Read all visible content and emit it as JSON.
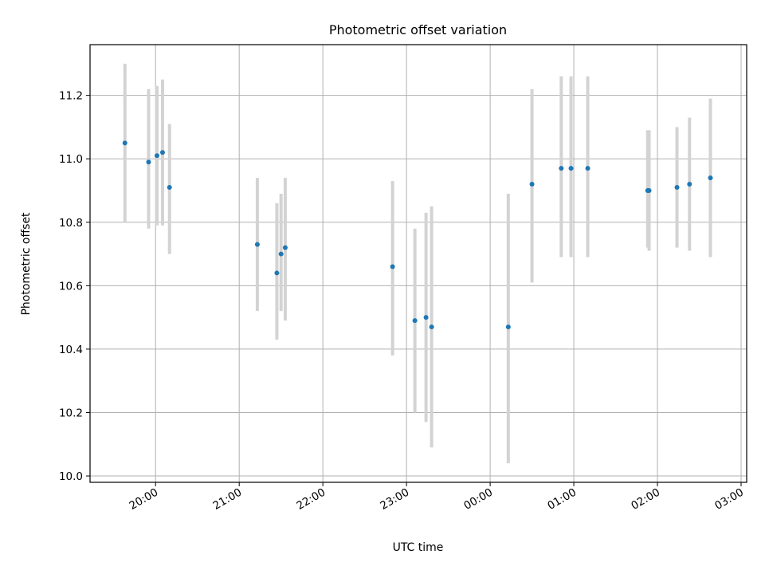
{
  "chart_data": {
    "type": "scatter",
    "title": "Photometric offset variation",
    "xlabel": "UTC time",
    "ylabel": "Photometric offset",
    "x_axis_type": "time",
    "x_start_date": "2000-01-01",
    "xlim": [
      "2000-01-01T19:13",
      "2000-01-02T03:04"
    ],
    "ylim": [
      9.98,
      11.36
    ],
    "x_ticks": [
      "20:00",
      "21:00",
      "22:00",
      "23:00",
      "00:00",
      "01:00",
      "02:00",
      "03:00"
    ],
    "y_ticks": [
      "10.0",
      "10.2",
      "10.4",
      "10.6",
      "10.8",
      "11.0",
      "11.2"
    ],
    "grid": true,
    "marker_color": "#1f77b4",
    "errorbar_color": "#d3d3d3",
    "points": [
      {
        "time": "19:38",
        "value": 11.05,
        "low": 10.8,
        "high": 11.3
      },
      {
        "time": "19:55",
        "value": 10.99,
        "low": 10.78,
        "high": 11.22
      },
      {
        "time": "20:01",
        "value": 11.01,
        "low": 10.79,
        "high": 11.23
      },
      {
        "time": "20:05",
        "value": 11.02,
        "low": 10.79,
        "high": 11.25
      },
      {
        "time": "20:10",
        "value": 10.91,
        "low": 10.7,
        "high": 11.11
      },
      {
        "time": "21:13",
        "value": 10.73,
        "low": 10.52,
        "high": 10.94
      },
      {
        "time": "21:27",
        "value": 10.64,
        "low": 10.43,
        "high": 10.86
      },
      {
        "time": "21:30",
        "value": 10.7,
        "low": 10.52,
        "high": 10.89
      },
      {
        "time": "21:33",
        "value": 10.72,
        "low": 10.49,
        "high": 10.94
      },
      {
        "time": "22:50",
        "value": 10.66,
        "low": 10.38,
        "high": 10.93
      },
      {
        "time": "23:06",
        "value": 10.49,
        "low": 10.2,
        "high": 10.78
      },
      {
        "time": "23:14",
        "value": 10.5,
        "low": 10.17,
        "high": 10.83
      },
      {
        "time": "23:18",
        "value": 10.47,
        "low": 10.09,
        "high": 10.85
      },
      {
        "time": "00:13",
        "value": 10.47,
        "low": 10.04,
        "high": 10.89
      },
      {
        "time": "00:30",
        "value": 10.92,
        "low": 10.61,
        "high": 11.22
      },
      {
        "time": "00:51",
        "value": 10.97,
        "low": 10.69,
        "high": 11.26
      },
      {
        "time": "00:58",
        "value": 10.97,
        "low": 10.69,
        "high": 11.26
      },
      {
        "time": "01:10",
        "value": 10.97,
        "low": 10.69,
        "high": 11.26
      },
      {
        "time": "01:53",
        "value": 10.9,
        "low": 10.72,
        "high": 11.09
      },
      {
        "time": "01:54",
        "value": 10.9,
        "low": 10.71,
        "high": 11.09
      },
      {
        "time": "02:14",
        "value": 10.91,
        "low": 10.72,
        "high": 11.1
      },
      {
        "time": "02:23",
        "value": 10.92,
        "low": 10.71,
        "high": 11.13
      },
      {
        "time": "02:38",
        "value": 10.94,
        "low": 10.69,
        "high": 11.19
      }
    ]
  }
}
